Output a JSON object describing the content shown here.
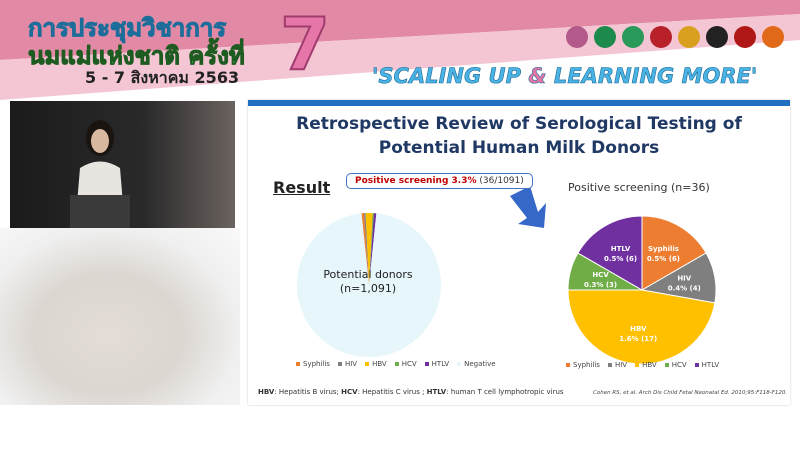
{
  "banner": {
    "thai_line1": "การประชุมวิชาการ",
    "thai_line2": "นมแม่แห่งชาติ ครั้งที่",
    "number": "7",
    "dates": "5 - 7 สิงหาคม 2563",
    "slogan_part1": "'SCALING UP ",
    "slogan_amp": "&",
    "slogan_part2": " LEARNING MORE'",
    "logo_colors": [
      "#b35a8a",
      "#1b8a4a",
      "#2a9a5a",
      "#b8202a",
      "#d9a020",
      "#222222",
      "#b01818",
      "#e06a1a"
    ]
  },
  "slide": {
    "title_line1": "Retrospective Review of Serological Testing of",
    "title_line2": "Potential Human Milk Donors",
    "result_heading": "Result",
    "callout_bold": "Positive screening 3.3%",
    "callout_rest": " (36/1091)",
    "left_center_line1": "Potential donors",
    "left_center_line2": "(n=1,091)",
    "footnote": [
      {
        "bold": "HBV",
        "text": ": Hepatitis B virus; "
      },
      {
        "bold": "HCV",
        "text": ": Hepatitis C virus ; "
      },
      {
        "bold": "HTLV",
        "text": ": human T cell lymphotropic virus"
      }
    ],
    "citation": "Cohen RS, et al. Arch Dis Child Fetal Neonatal Ed. 2010;95:F118-F120."
  },
  "chart_data": [
    {
      "type": "pie",
      "title": "",
      "categories": [
        "Syphilis",
        "HIV",
        "HBV",
        "HCV",
        "HTLV",
        "Negative"
      ],
      "values": [
        6,
        4,
        17,
        3,
        6,
        1055
      ],
      "colors": [
        "#ed7d31",
        "#7f7f7f",
        "#ffc000",
        "#70ad47",
        "#7030a0",
        "#e6f6fb"
      ],
      "legend": "bottom"
    },
    {
      "type": "pie",
      "title": "Positive screening (n=36)",
      "categories": [
        "Syphilis",
        "HIV",
        "HBV",
        "HCV",
        "HTLV"
      ],
      "values": [
        6,
        4,
        17,
        3,
        6
      ],
      "labels": [
        "0.5% (6)",
        "0.4% (4)",
        "1.6% (17)",
        "0.3% (3)",
        "0.5% (6)"
      ],
      "colors": [
        "#ed7d31",
        "#7f7f7f",
        "#ffc000",
        "#70ad47",
        "#7030a0"
      ],
      "legend": "bottom"
    }
  ]
}
